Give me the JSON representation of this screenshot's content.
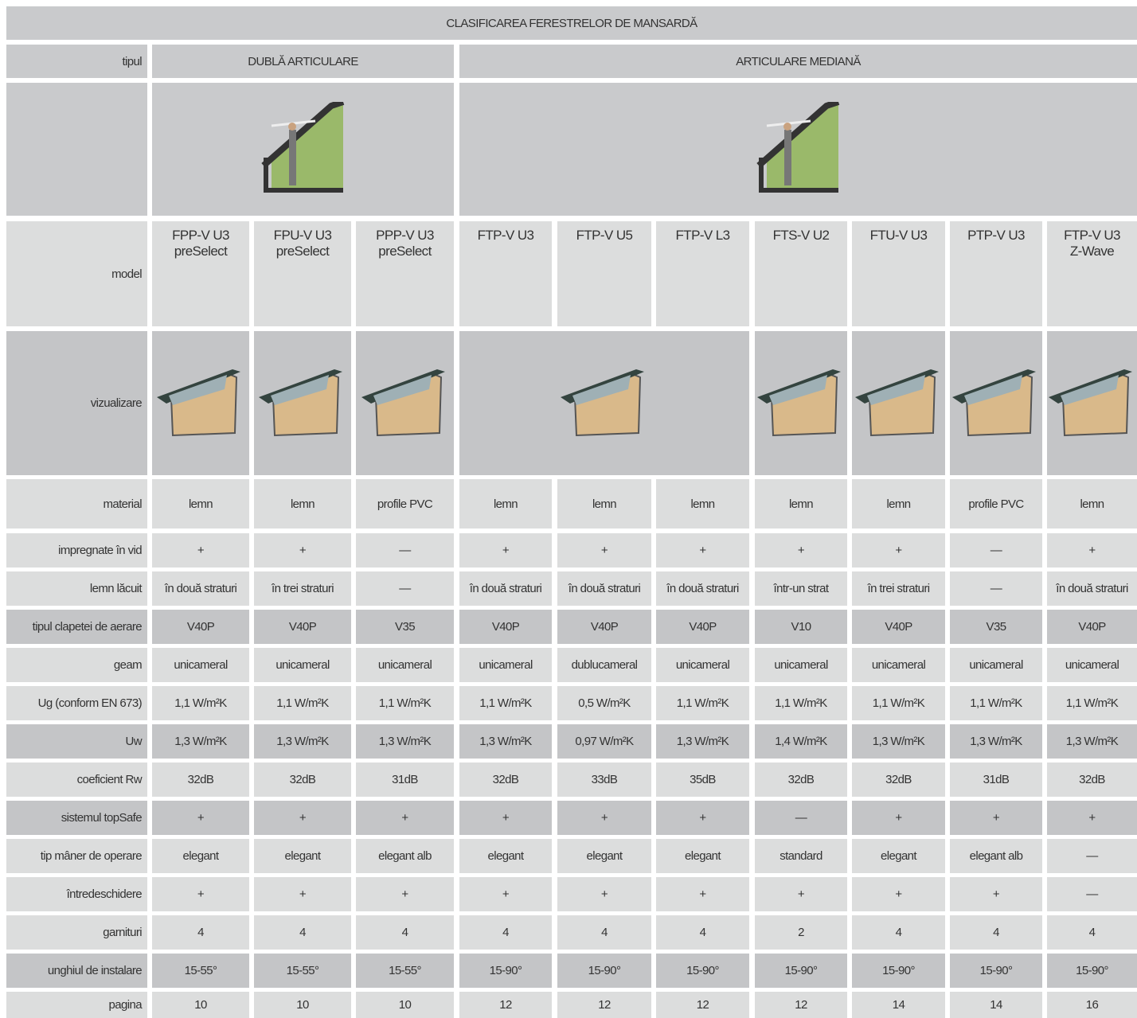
{
  "header": {
    "title": "CLASIFICAREA FERESTRELOR DE MANSARDĂ"
  },
  "types": {
    "label": "tipul",
    "groups": [
      "DUBLĂ ARTICULARE",
      "ARTICULARE MEDIANĂ"
    ]
  },
  "model": {
    "label": "model",
    "values": [
      "FPP-V U3\npreSelect",
      "FPU-V U3\npreSelect",
      "PPP-V U3\npreSelect",
      "FTP-V U3",
      "FTP-V U5",
      "FTP-V L3",
      "FTS-V U2",
      "FTU-V U3",
      "PTP-V U3",
      "FTP-V U3\nZ-Wave"
    ]
  },
  "visualization": {
    "label": "vizualizare"
  },
  "rows": [
    {
      "label": "material",
      "cells": [
        "lemn",
        "lemn",
        "profile PVC",
        "lemn",
        "lemn",
        "lemn",
        "lemn",
        "lemn",
        "profile PVC",
        "lemn"
      ]
    },
    {
      "label": "impregnate în vid",
      "cells": [
        "+",
        "+",
        "—",
        "+",
        "+",
        "+",
        "+",
        "+",
        "—",
        "+"
      ]
    },
    {
      "label": "lemn lăcuit",
      "cells": [
        "în două straturi",
        "în trei straturi",
        "—",
        "în două straturi",
        "în două straturi",
        "în două straturi",
        "într-un strat",
        "în trei straturi",
        "—",
        "în două straturi"
      ]
    },
    {
      "label": "tipul clapetei de aerare",
      "cells": [
        "V40P",
        "V40P",
        "V35",
        "V40P",
        "V40P",
        "V40P",
        "V10",
        "V40P",
        "V35",
        "V40P"
      ]
    },
    {
      "label": "geam",
      "cells": [
        "unicameral",
        "unicameral",
        "unicameral",
        "unicameral",
        "dublucameral",
        "unicameral",
        "unicameral",
        "unicameral",
        "unicameral",
        "unicameral"
      ]
    },
    {
      "label": "Ug (conform EN 673)",
      "cells": [
        "1,1 W/m²K",
        "1,1 W/m²K",
        "1,1 W/m²K",
        "1,1 W/m²K",
        "0,5 W/m²K",
        "1,1 W/m²K",
        "1,1 W/m²K",
        "1,1 W/m²K",
        "1,1 W/m²K",
        "1,1 W/m²K"
      ]
    },
    {
      "label": "Uw",
      "cells": [
        "1,3 W/m²K",
        "1,3 W/m²K",
        "1,3 W/m²K",
        "1,3 W/m²K",
        "0,97 W/m²K",
        "1,3 W/m²K",
        "1,4 W/m²K",
        "1,3 W/m²K",
        "1,3 W/m²K",
        "1,3 W/m²K"
      ]
    },
    {
      "label": "coeficient Rw",
      "cells": [
        "32dB",
        "32dB",
        "31dB",
        "32dB",
        "33dB",
        "35dB",
        "32dB",
        "32dB",
        "31dB",
        "32dB"
      ]
    },
    {
      "label": "sistemul topSafe",
      "cells": [
        "+",
        "+",
        "+",
        "+",
        "+",
        "+",
        "—",
        "+",
        "+",
        "+"
      ]
    },
    {
      "label": "tip mâner de operare",
      "cells": [
        "elegant",
        "elegant",
        "elegant alb",
        "elegant",
        "elegant",
        "elegant",
        "standard",
        "elegant",
        "elegant alb",
        "—"
      ]
    },
    {
      "label": "întredeschidere",
      "cells": [
        "+",
        "+",
        "+",
        "+",
        "+",
        "+",
        "+",
        "+",
        "+",
        "—"
      ]
    },
    {
      "label": "garnituri",
      "cells": [
        "4",
        "4",
        "4",
        "4",
        "4",
        "4",
        "2",
        "4",
        "4",
        "4"
      ]
    },
    {
      "label": "unghiul de instalare",
      "cells": [
        "15-55°",
        "15-55°",
        "15-55°",
        "15-90°",
        "15-90°",
        "15-90°",
        "15-90°",
        "15-90°",
        "15-90°",
        "15-90°"
      ]
    },
    {
      "label": "pagina",
      "cells": [
        "10",
        "10",
        "10",
        "12",
        "12",
        "12",
        "12",
        "14",
        "14",
        "16"
      ]
    }
  ]
}
